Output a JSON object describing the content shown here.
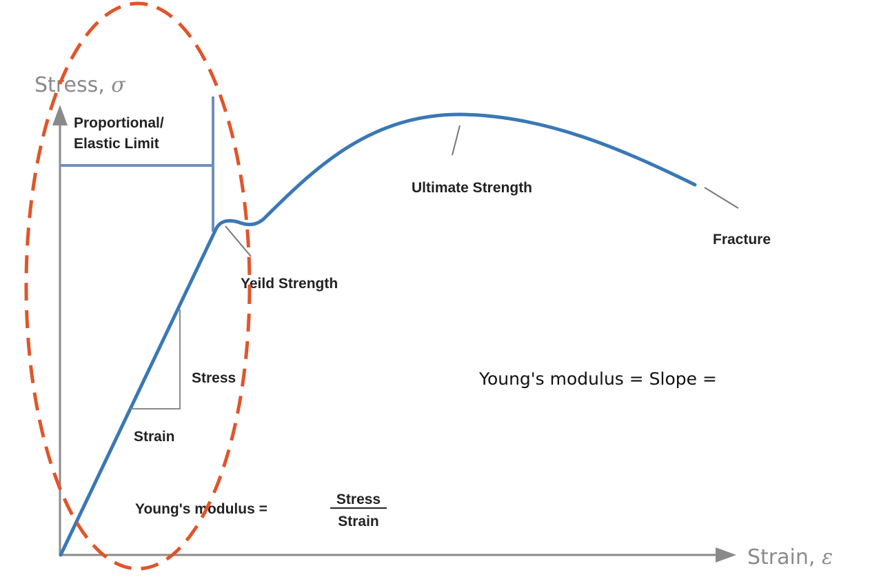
{
  "axes": {
    "y_label": "Stress, ",
    "y_symbol": "σ",
    "x_label": "Strain, ",
    "x_symbol": "ε"
  },
  "labels": {
    "proportional_line1": "Proportional/",
    "proportional_line2": "Elastic Limit",
    "ultimate_strength": "Ultimate Strength",
    "fracture": "Fracture",
    "yield_strength": "Yeild Strength",
    "triangle_stress": "Stress",
    "triangle_strain": "Strain",
    "youngs_modulus_slope": "Young's modulus = Slope =",
    "youngs_modulus_formula": "Young's modulus =",
    "formula_numerator": "Stress",
    "formula_denominator": "Strain"
  },
  "colors": {
    "curve": "#3a78b5",
    "limit_lines": "#6e8fba",
    "axes": "#8a8a8a",
    "highlight_ellipse": "#e0552a",
    "pointer_lines": "#777777"
  }
}
